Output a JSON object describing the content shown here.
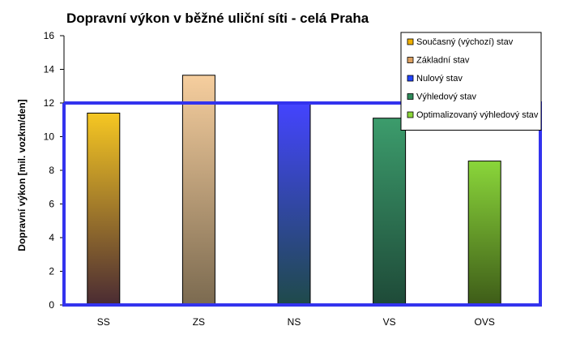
{
  "chart_data": {
    "type": "bar",
    "title": "Dopravní výkon v běžné uliční síti - celá Praha",
    "ylabel": "Dopravní výkon [mil. vozkm/den]",
    "xlabel": "",
    "ylim": [
      0,
      16
    ],
    "yticks": [
      0,
      2,
      4,
      6,
      8,
      10,
      12,
      14,
      16
    ],
    "categories": [
      "SS",
      "ZS",
      "NS",
      "VS",
      "OVS"
    ],
    "values": [
      11.4,
      13.65,
      12.0,
      11.1,
      8.55
    ],
    "reference_line": 12.0,
    "grid": false,
    "legend_position": "top-right",
    "series": [
      {
        "name": "Současný (výchozí) stav",
        "top_color": "#f6c722",
        "bottom_color": "#4a2b33"
      },
      {
        "name": "Základní stav",
        "top_color": "#f6ce9e",
        "bottom_color": "#7b6a50"
      },
      {
        "name": "Nulový stav",
        "top_color": "#4444ff",
        "bottom_color": "#1f4a4a"
      },
      {
        "name": "Výhledový stav",
        "top_color": "#3c9c6c",
        "bottom_color": "#1e4a38"
      },
      {
        "name": "Optimalizovaný výhledový stav",
        "top_color": "#8ad63a",
        "bottom_color": "#3e5c18"
      }
    ],
    "legend_swatch_colors": [
      "#f0b000",
      "#dca060",
      "#2244ff",
      "#2e8a5a",
      "#8ad63a"
    ],
    "reference_line_color": "#3333ee"
  }
}
